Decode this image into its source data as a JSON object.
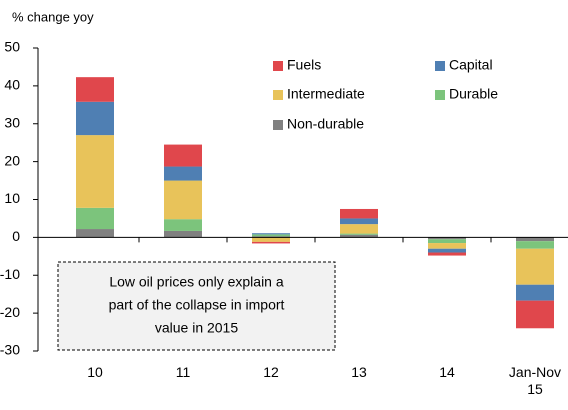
{
  "chart_data": {
    "type": "stacked_bar",
    "ylabel": "% change yoy",
    "categories": [
      "10",
      "11",
      "12",
      "13",
      "14",
      "Jan-Nov 15"
    ],
    "series": [
      {
        "name": "Non-durable",
        "color": "#808080",
        "values": [
          2.2,
          1.7,
          0.3,
          0.7,
          -0.5,
          -1.0
        ]
      },
      {
        "name": "Durable",
        "color": "#7cc47c",
        "values": [
          5.6,
          3.1,
          0.5,
          0.3,
          -1.0,
          -2.0
        ]
      },
      {
        "name": "Intermediate",
        "color": "#e8c35a",
        "values": [
          19.2,
          10.2,
          -1.2,
          2.5,
          -1.5,
          -9.5
        ]
      },
      {
        "name": "Capital",
        "color": "#4f7fb3",
        "values": [
          8.8,
          3.7,
          0.3,
          1.5,
          -1.0,
          -4.2
        ]
      },
      {
        "name": "Fuels",
        "color": "#e0474c",
        "values": [
          6.5,
          5.8,
          -0.4,
          2.5,
          -0.8,
          -7.3
        ]
      }
    ],
    "ylim": [
      -30,
      50
    ],
    "yticks": [
      -30,
      -20,
      -10,
      0,
      10,
      20,
      30,
      40,
      50
    ],
    "annotation": [
      "Low oil prices only explain a",
      "part of the collapse in import",
      "value in 2015"
    ]
  }
}
